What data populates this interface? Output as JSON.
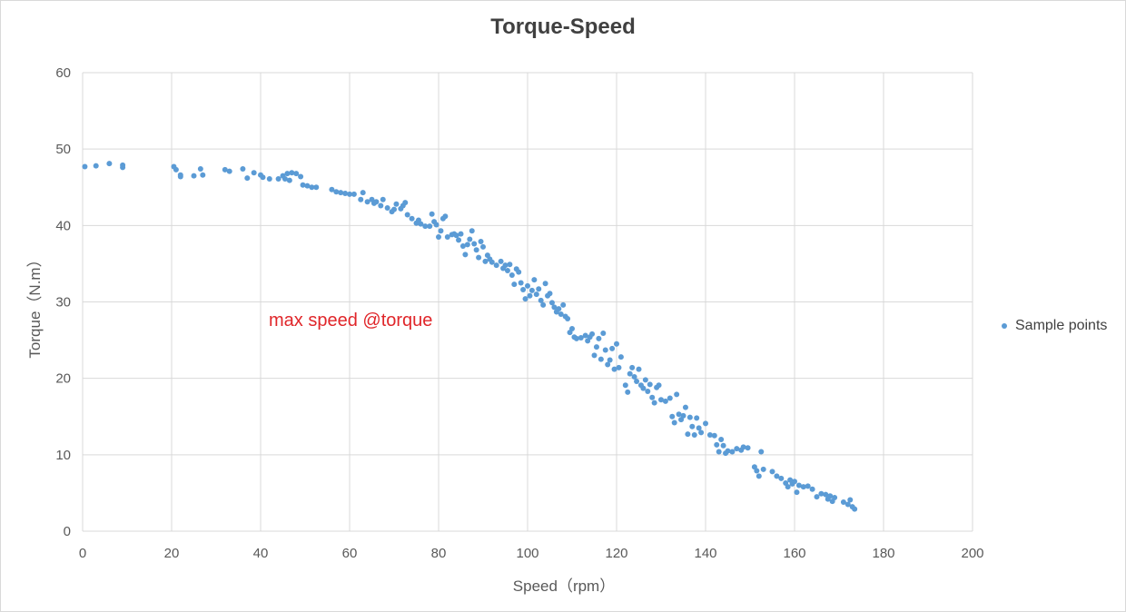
{
  "chart_data": {
    "type": "scatter",
    "title": "Torque-Speed",
    "xlabel": "Speed（rpm）",
    "ylabel": "Torque（N.m）",
    "xlim": [
      0,
      200
    ],
    "ylim": [
      0,
      60
    ],
    "xticks": [
      "0",
      "20",
      "40",
      "60",
      "80",
      "100",
      "120",
      "140",
      "160",
      "180",
      "200"
    ],
    "yticks": [
      "0",
      "10",
      "20",
      "30",
      "40",
      "50",
      "60"
    ],
    "grid": true,
    "legend_position": "right",
    "annotation": "max speed @torque",
    "series": [
      {
        "name": "Sample points",
        "color": "#5b9bd5",
        "points": [
          [
            0.5,
            47.7
          ],
          [
            3,
            47.8
          ],
          [
            6,
            48.1
          ],
          [
            9,
            47.9
          ],
          [
            9,
            47.6
          ],
          [
            20.5,
            47.7
          ],
          [
            21,
            47.3
          ],
          [
            22,
            46.6
          ],
          [
            22,
            46.4
          ],
          [
            25,
            46.5
          ],
          [
            26.5,
            47.4
          ],
          [
            27,
            46.6
          ],
          [
            32,
            47.3
          ],
          [
            33,
            47.1
          ],
          [
            36,
            47.4
          ],
          [
            37,
            46.2
          ],
          [
            38.5,
            46.9
          ],
          [
            40,
            46.6
          ],
          [
            40.5,
            46.3
          ],
          [
            42,
            46.1
          ],
          [
            44,
            46.1
          ],
          [
            45,
            46.5
          ],
          [
            45.5,
            46.1
          ],
          [
            46,
            46.8
          ],
          [
            46.5,
            45.9
          ],
          [
            47,
            46.9
          ],
          [
            48,
            46.8
          ],
          [
            49,
            46.4
          ],
          [
            49.5,
            45.3
          ],
          [
            50.5,
            45.2
          ],
          [
            51.5,
            45.0
          ],
          [
            52.5,
            45.0
          ],
          [
            56,
            44.7
          ],
          [
            57,
            44.4
          ],
          [
            58,
            44.3
          ],
          [
            59,
            44.2
          ],
          [
            60,
            44.1
          ],
          [
            61,
            44.1
          ],
          [
            62.5,
            43.4
          ],
          [
            63,
            44.3
          ],
          [
            64,
            43.1
          ],
          [
            65,
            43.4
          ],
          [
            65.5,
            42.9
          ],
          [
            66,
            43.1
          ],
          [
            67,
            42.6
          ],
          [
            67.5,
            43.4
          ],
          [
            68.5,
            42.3
          ],
          [
            69.5,
            41.8
          ],
          [
            70,
            42.1
          ],
          [
            70.5,
            42.8
          ],
          [
            71.5,
            42.2
          ],
          [
            72,
            42.6
          ],
          [
            72.5,
            43.0
          ],
          [
            73,
            41.4
          ],
          [
            74,
            40.9
          ],
          [
            75,
            40.3
          ],
          [
            75.5,
            40.7
          ],
          [
            76,
            40.2
          ],
          [
            77,
            39.9
          ],
          [
            78,
            39.9
          ],
          [
            78.5,
            41.5
          ],
          [
            79,
            40.5
          ],
          [
            79.5,
            40.1
          ],
          [
            80,
            38.5
          ],
          [
            80.5,
            39.3
          ],
          [
            81,
            40.9
          ],
          [
            81.5,
            41.2
          ],
          [
            82,
            38.5
          ],
          [
            83,
            38.8
          ],
          [
            83.5,
            38.9
          ],
          [
            84,
            38.7
          ],
          [
            84.5,
            38.1
          ],
          [
            85,
            38.9
          ],
          [
            85.5,
            37.3
          ],
          [
            86,
            36.2
          ],
          [
            86.5,
            37.5
          ],
          [
            87,
            38.2
          ],
          [
            87.5,
            39.3
          ],
          [
            88,
            37.6
          ],
          [
            88.5,
            36.8
          ],
          [
            89,
            35.8
          ],
          [
            89.5,
            37.9
          ],
          [
            90,
            37.2
          ],
          [
            90.5,
            35.3
          ],
          [
            91,
            36.1
          ],
          [
            91.5,
            35.6
          ],
          [
            92,
            35.2
          ],
          [
            93,
            34.8
          ],
          [
            94,
            35.3
          ],
          [
            94.5,
            34.4
          ],
          [
            95,
            34.8
          ],
          [
            95.5,
            34.1
          ],
          [
            96,
            34.9
          ],
          [
            96.5,
            33.5
          ],
          [
            97,
            32.3
          ],
          [
            97.5,
            34.3
          ],
          [
            98,
            33.9
          ],
          [
            98.5,
            32.5
          ],
          [
            99,
            31.6
          ],
          [
            99.5,
            30.4
          ],
          [
            100,
            32.1
          ],
          [
            100.5,
            30.8
          ],
          [
            101,
            31.5
          ],
          [
            101.5,
            32.9
          ],
          [
            102,
            31.0
          ],
          [
            102.5,
            31.7
          ],
          [
            103,
            30.2
          ],
          [
            103.5,
            29.6
          ],
          [
            104,
            32.4
          ],
          [
            104.5,
            30.8
          ],
          [
            105,
            31.1
          ],
          [
            105.5,
            29.9
          ],
          [
            106,
            29.3
          ],
          [
            106.5,
            28.7
          ],
          [
            107,
            29.1
          ],
          [
            107.5,
            28.4
          ],
          [
            108,
            29.6
          ],
          [
            108.5,
            28.1
          ],
          [
            109,
            27.8
          ],
          [
            109.5,
            26.0
          ],
          [
            110,
            26.5
          ],
          [
            110.5,
            25.4
          ],
          [
            111,
            25.2
          ],
          [
            112,
            25.3
          ],
          [
            113,
            25.6
          ],
          [
            113.5,
            24.9
          ],
          [
            114,
            25.4
          ],
          [
            114.5,
            25.8
          ],
          [
            115,
            23.0
          ],
          [
            115.5,
            24.1
          ],
          [
            116,
            25.2
          ],
          [
            116.5,
            22.5
          ],
          [
            117,
            25.9
          ],
          [
            117.5,
            23.7
          ],
          [
            118,
            21.8
          ],
          [
            118.5,
            22.4
          ],
          [
            119,
            23.9
          ],
          [
            119.5,
            21.2
          ],
          [
            120,
            24.5
          ],
          [
            120.5,
            21.4
          ],
          [
            121,
            22.8
          ],
          [
            122,
            19.1
          ],
          [
            122.5,
            18.2
          ],
          [
            123,
            20.6
          ],
          [
            123.5,
            21.4
          ],
          [
            124,
            20.2
          ],
          [
            124.5,
            19.6
          ],
          [
            125,
            21.2
          ],
          [
            125.5,
            19.1
          ],
          [
            126,
            18.7
          ],
          [
            126.5,
            19.8
          ],
          [
            127,
            18.3
          ],
          [
            127.5,
            19.2
          ],
          [
            128,
            17.5
          ],
          [
            128.5,
            16.8
          ],
          [
            129,
            18.8
          ],
          [
            129.5,
            19.1
          ],
          [
            130,
            17.2
          ],
          [
            131,
            17.0
          ],
          [
            132,
            17.4
          ],
          [
            132.5,
            15.0
          ],
          [
            133,
            14.2
          ],
          [
            133.5,
            17.9
          ],
          [
            134,
            15.3
          ],
          [
            134.5,
            14.6
          ],
          [
            135,
            15.1
          ],
          [
            135.5,
            16.2
          ],
          [
            136,
            12.7
          ],
          [
            136.5,
            14.9
          ],
          [
            137,
            13.7
          ],
          [
            137.5,
            12.6
          ],
          [
            138,
            14.8
          ],
          [
            138.5,
            13.5
          ],
          [
            139,
            12.9
          ],
          [
            140,
            14.1
          ],
          [
            141,
            12.6
          ],
          [
            142,
            12.5
          ],
          [
            142.5,
            11.3
          ],
          [
            143,
            10.4
          ],
          [
            143.5,
            12.0
          ],
          [
            144,
            11.2
          ],
          [
            144.5,
            10.2
          ],
          [
            145,
            10.5
          ],
          [
            146,
            10.4
          ],
          [
            147,
            10.8
          ],
          [
            148,
            10.6
          ],
          [
            148.5,
            11.0
          ],
          [
            149.5,
            10.9
          ],
          [
            151,
            8.4
          ],
          [
            151.5,
            7.9
          ],
          [
            152,
            7.2
          ],
          [
            152.5,
            10.4
          ],
          [
            153,
            8.1
          ],
          [
            155,
            7.8
          ],
          [
            156,
            7.2
          ],
          [
            157,
            6.9
          ],
          [
            158,
            6.3
          ],
          [
            158.5,
            5.8
          ],
          [
            159,
            6.7
          ],
          [
            159.5,
            6.2
          ],
          [
            160,
            6.5
          ],
          [
            160.5,
            5.1
          ],
          [
            161,
            6.0
          ],
          [
            162,
            5.8
          ],
          [
            163,
            5.9
          ],
          [
            164,
            5.5
          ],
          [
            165,
            4.5
          ],
          [
            166,
            4.9
          ],
          [
            167,
            4.8
          ],
          [
            167.5,
            4.2
          ],
          [
            168,
            4.6
          ],
          [
            168.5,
            3.9
          ],
          [
            169,
            4.4
          ],
          [
            171,
            3.8
          ],
          [
            172,
            3.5
          ],
          [
            172.5,
            4.1
          ],
          [
            173,
            3.2
          ],
          [
            173.5,
            2.9
          ]
        ]
      }
    ]
  }
}
